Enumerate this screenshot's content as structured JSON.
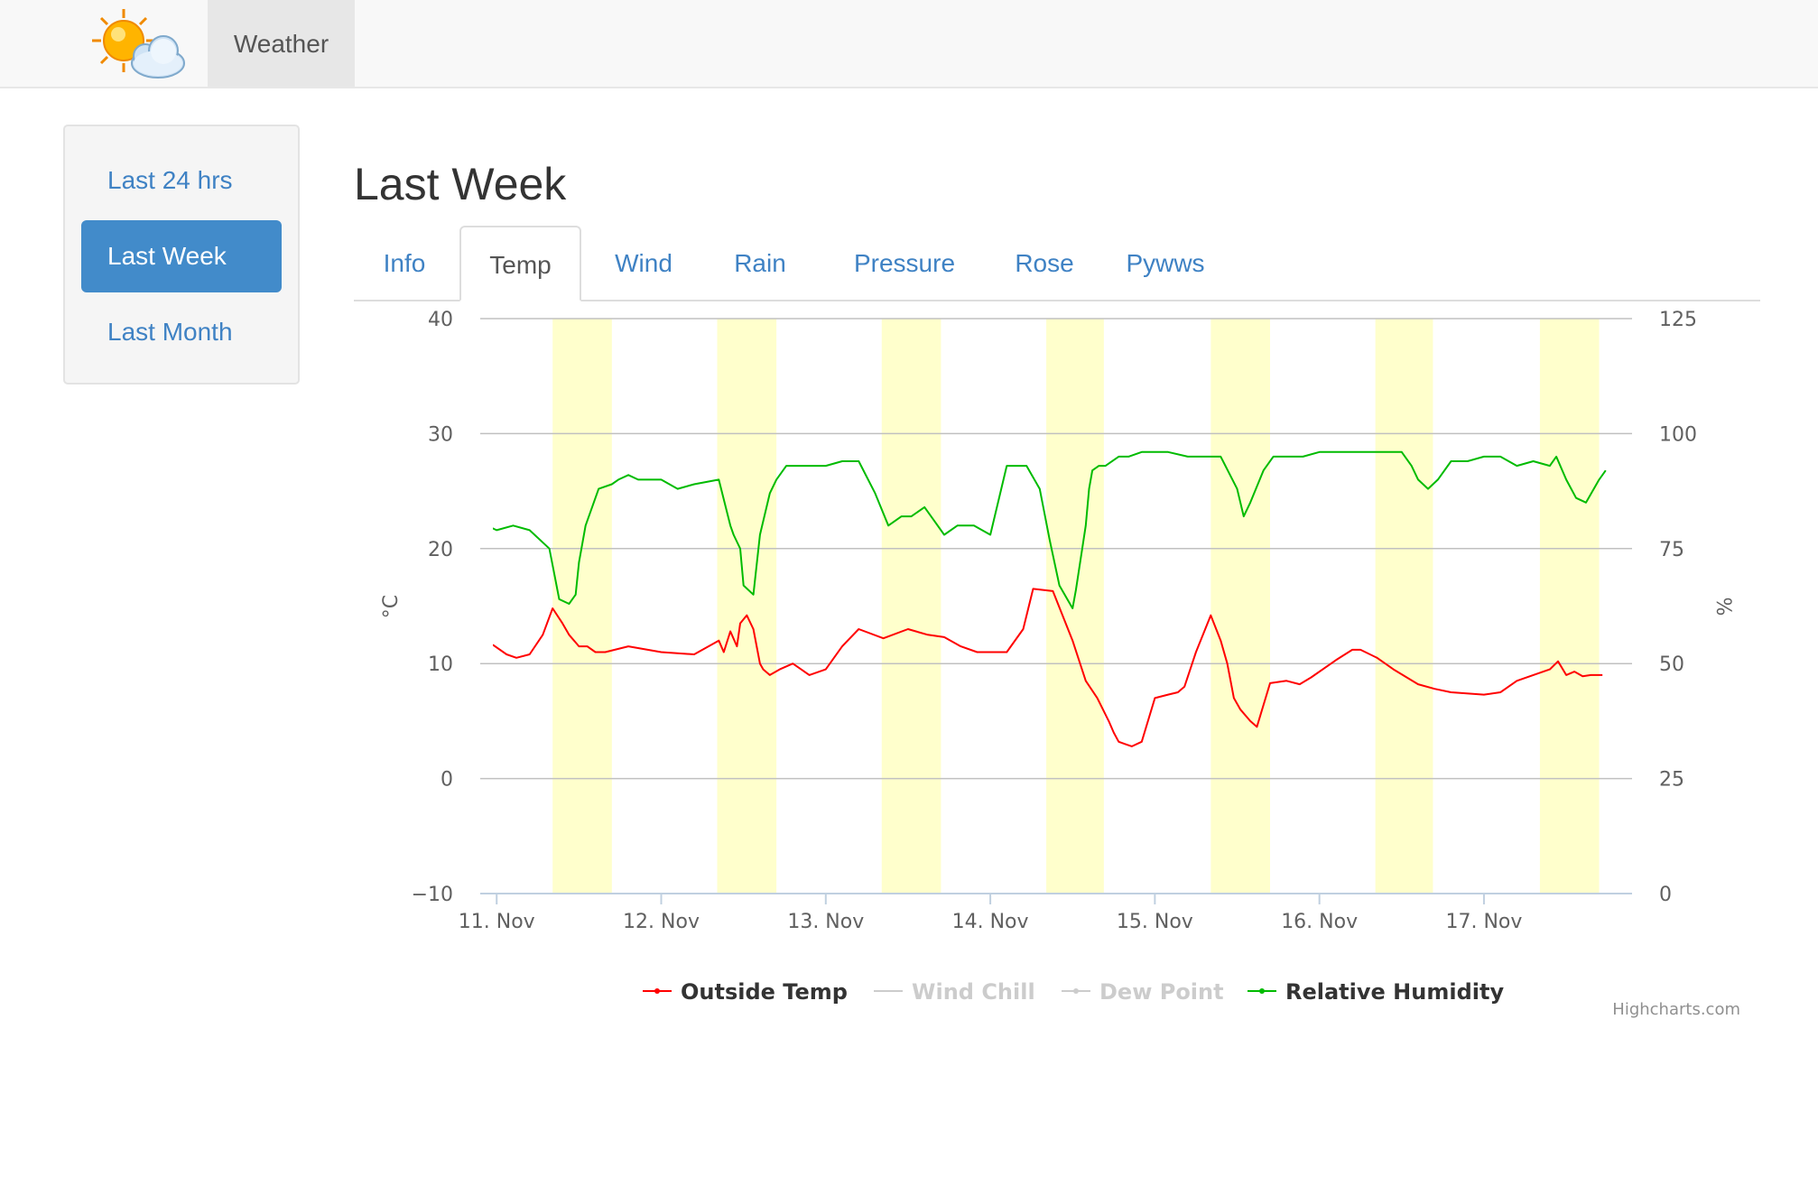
{
  "navbar": {
    "brand_icon": "sun-cloud-icon",
    "item_label": "Weather"
  },
  "sidebar": {
    "items": [
      "Last 24 hrs",
      "Last Week",
      "Last Month"
    ],
    "active_index": 1
  },
  "main": {
    "title": "Last Week",
    "tabs": [
      "Info",
      "Temp",
      "Wind",
      "Rain",
      "Pressure",
      "Rose",
      "Pywws"
    ],
    "active_tab_index": 1
  },
  "chart_credit": "Highcharts.com",
  "chart_data": {
    "type": "line",
    "x_tick_labels": [
      "11. Nov",
      "12. Nov",
      "13. Nov",
      "14. Nov",
      "15. Nov",
      "16. Nov",
      "17. Nov"
    ],
    "xlim": [
      -0.1,
      6.9
    ],
    "y_left": {
      "label": "°C",
      "ticks": [
        -10,
        0,
        10,
        20,
        30,
        40
      ],
      "lim": [
        -10,
        40
      ]
    },
    "y_right": {
      "label": "%",
      "ticks": [
        0,
        25,
        50,
        75,
        100,
        125
      ],
      "lim": [
        0,
        125
      ]
    },
    "grid": true,
    "daylight_bands": [
      [
        0.34,
        0.7
      ],
      [
        1.34,
        1.7
      ],
      [
        2.34,
        2.7
      ],
      [
        3.34,
        3.69
      ],
      [
        4.34,
        4.7
      ],
      [
        5.34,
        5.69
      ],
      [
        6.34,
        6.7
      ]
    ],
    "daylight_color": "#ffffcc",
    "legend_position": "bottom",
    "series": [
      {
        "name": "Outside Temp",
        "axis": "left",
        "color": "#ff0000",
        "visible": true,
        "x": [
          -0.2,
          -0.12,
          -0.08,
          -0.02,
          0.06,
          0.12,
          0.2,
          0.28,
          0.34,
          0.4,
          0.44,
          0.5,
          0.55,
          0.6,
          0.66,
          0.8,
          1.0,
          1.2,
          1.35,
          1.38,
          1.42,
          1.46,
          1.48,
          1.52,
          1.56,
          1.6,
          1.62,
          1.66,
          1.72,
          1.8,
          1.9,
          2.0,
          2.1,
          2.2,
          2.35,
          2.5,
          2.62,
          2.72,
          2.82,
          2.92,
          3.1,
          3.2,
          3.26,
          3.38,
          3.5,
          3.58,
          3.65,
          3.72,
          3.75,
          3.78,
          3.82,
          3.86,
          3.92,
          4.0,
          4.08,
          4.14,
          4.18,
          4.25,
          4.34,
          4.4,
          4.44,
          4.48,
          4.52,
          4.58,
          4.62,
          4.7,
          4.8,
          4.88,
          4.95,
          5.1,
          5.2,
          5.25,
          5.35,
          5.45,
          5.6,
          5.7,
          5.8,
          6.0,
          6.1,
          6.2,
          6.3,
          6.4,
          6.45,
          6.5,
          6.55,
          6.6,
          6.65,
          6.72
        ],
        "values": [
          10,
          11.8,
          11.8,
          11.6,
          10.8,
          10.5,
          10.8,
          12.5,
          14.8,
          13.5,
          12.5,
          11.5,
          11.5,
          11,
          11,
          11.5,
          11,
          10.8,
          12,
          11,
          12.8,
          11.5,
          13.5,
          14.2,
          13,
          10,
          9.5,
          9,
          9.5,
          10,
          9,
          9.5,
          11.5,
          13,
          12.2,
          13,
          12.5,
          12.3,
          11.5,
          11,
          11,
          13,
          16.5,
          16.3,
          12,
          8.5,
          7,
          5,
          4,
          3.2,
          3,
          2.8,
          3.2,
          7,
          7.3,
          7.5,
          8,
          11,
          14.2,
          12,
          10,
          7,
          6,
          5,
          4.5,
          8.3,
          8.5,
          8.2,
          8.8,
          10.3,
          11.2,
          11.2,
          10.5,
          9.5,
          8.2,
          7.8,
          7.5,
          7.3,
          7.5,
          8.5,
          9,
          9.5,
          10.2,
          9,
          9.3,
          8.9,
          9,
          9
        ]
      },
      {
        "name": "Wind Chill",
        "axis": "left",
        "color": "#cccccc",
        "visible": false,
        "x": [],
        "values": []
      },
      {
        "name": "Dew Point",
        "axis": "left",
        "color": "#cccccc",
        "visible": false,
        "x": [],
        "values": []
      },
      {
        "name": "Relative Humidity",
        "axis": "right",
        "color": "#00bb00",
        "visible": true,
        "x": [
          -0.2,
          -0.12,
          -0.06,
          0.0,
          0.1,
          0.2,
          0.32,
          0.38,
          0.44,
          0.48,
          0.5,
          0.54,
          0.62,
          0.7,
          0.74,
          0.8,
          0.86,
          1.0,
          1.1,
          1.2,
          1.35,
          1.42,
          1.44,
          1.48,
          1.5,
          1.56,
          1.6,
          1.66,
          1.7,
          1.76,
          1.82,
          1.9,
          2.0,
          2.1,
          2.2,
          2.3,
          2.38,
          2.46,
          2.52,
          2.6,
          2.66,
          2.72,
          2.8,
          2.9,
          3.0,
          3.1,
          3.14,
          3.22,
          3.3,
          3.36,
          3.42,
          3.5,
          3.52,
          3.58,
          3.6,
          3.62,
          3.66,
          3.7,
          3.78,
          3.84,
          3.92,
          4.0,
          4.08,
          4.2,
          4.3,
          4.4,
          4.5,
          4.54,
          4.58,
          4.66,
          4.72,
          4.8,
          4.9,
          5.0,
          5.1,
          5.2,
          5.3,
          5.4,
          5.5,
          5.56,
          5.6,
          5.66,
          5.72,
          5.8,
          5.9,
          6.0,
          6.1,
          6.2,
          6.3,
          6.4,
          6.44,
          6.5,
          6.56,
          6.62,
          6.7,
          6.74
        ],
        "values": [
          85,
          83,
          80,
          79,
          80,
          79,
          75,
          64,
          63,
          65,
          72,
          80,
          88,
          89,
          90,
          91,
          90,
          90,
          88,
          89,
          90,
          80,
          78,
          75,
          67,
          65,
          78,
          87,
          90,
          93,
          93,
          93,
          93,
          94,
          94,
          87,
          80,
          82,
          82,
          84,
          81,
          78,
          80,
          80,
          78,
          93,
          93,
          93,
          88,
          77,
          67,
          62,
          66,
          80,
          88,
          92,
          93,
          93,
          95,
          95,
          96,
          96,
          96,
          95,
          95,
          95,
          88,
          82,
          85,
          92,
          95,
          95,
          95,
          96,
          96,
          96,
          96,
          96,
          96,
          93,
          90,
          88,
          90,
          94,
          94,
          95,
          95,
          93,
          94,
          93,
          95,
          90,
          86,
          85,
          90,
          92
        ]
      }
    ]
  }
}
